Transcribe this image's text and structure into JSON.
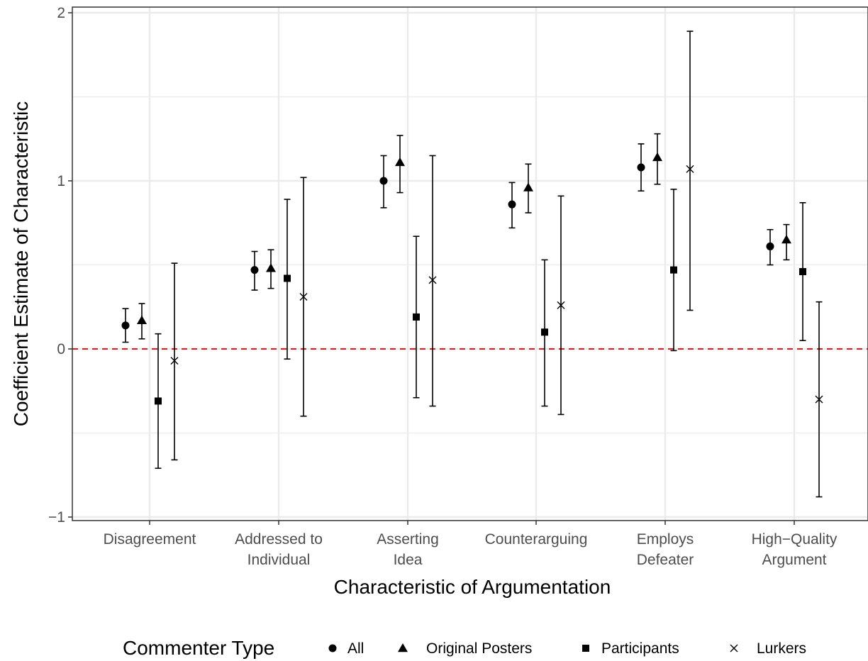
{
  "chart_data": {
    "type": "scatter",
    "subtype": "point-range",
    "xlabel": "Characteristic of Argumentation",
    "ylabel": "Coefficient Estimate of Characteristic",
    "ylim": [
      -1.05,
      2.02
    ],
    "yticks": [
      "2",
      "1",
      "0",
      "−1"
    ],
    "ytick_values": [
      2,
      1,
      0,
      -1
    ],
    "categories": [
      [
        "Disagreement"
      ],
      [
        "Addressed to",
        "Individual"
      ],
      [
        "Asserting",
        "Idea"
      ],
      [
        "Counterarguing"
      ],
      [
        "Employs",
        "Defeater"
      ],
      [
        "High−Quality",
        "Argument"
      ]
    ],
    "reference_line": {
      "y": 0,
      "color": "#e41a1c",
      "style": "dashed"
    },
    "grid": true,
    "legend": {
      "title": "Commenter Type",
      "position": "bottom"
    },
    "series": [
      {
        "name": "All",
        "shape": "circle",
        "estimates": [
          0.14,
          0.47,
          1.0,
          0.86,
          1.08,
          0.61
        ],
        "lower": [
          0.04,
          0.35,
          0.84,
          0.72,
          0.94,
          0.5
        ],
        "upper": [
          0.24,
          0.58,
          1.15,
          0.99,
          1.22,
          0.71
        ]
      },
      {
        "name": "Original Posters",
        "shape": "triangle",
        "estimates": [
          0.17,
          0.48,
          1.11,
          0.96,
          1.14,
          0.65
        ],
        "lower": [
          0.06,
          0.36,
          0.93,
          0.81,
          0.98,
          0.53
        ],
        "upper": [
          0.27,
          0.59,
          1.27,
          1.1,
          1.28,
          0.74
        ]
      },
      {
        "name": "Participants",
        "shape": "square",
        "estimates": [
          -0.31,
          0.42,
          0.19,
          0.1,
          0.47,
          0.46
        ],
        "lower": [
          -0.71,
          -0.06,
          -0.29,
          -0.34,
          -0.01,
          0.05
        ],
        "upper": [
          0.09,
          0.89,
          0.67,
          0.53,
          0.95,
          0.87
        ]
      },
      {
        "name": "Lurkers",
        "shape": "cross",
        "estimates": [
          -0.07,
          0.31,
          0.41,
          0.26,
          1.07,
          -0.3
        ],
        "lower": [
          -0.66,
          -0.4,
          -0.34,
          -0.39,
          0.23,
          -0.88
        ],
        "upper": [
          0.51,
          1.02,
          1.15,
          0.91,
          1.89,
          0.28
        ]
      }
    ]
  }
}
